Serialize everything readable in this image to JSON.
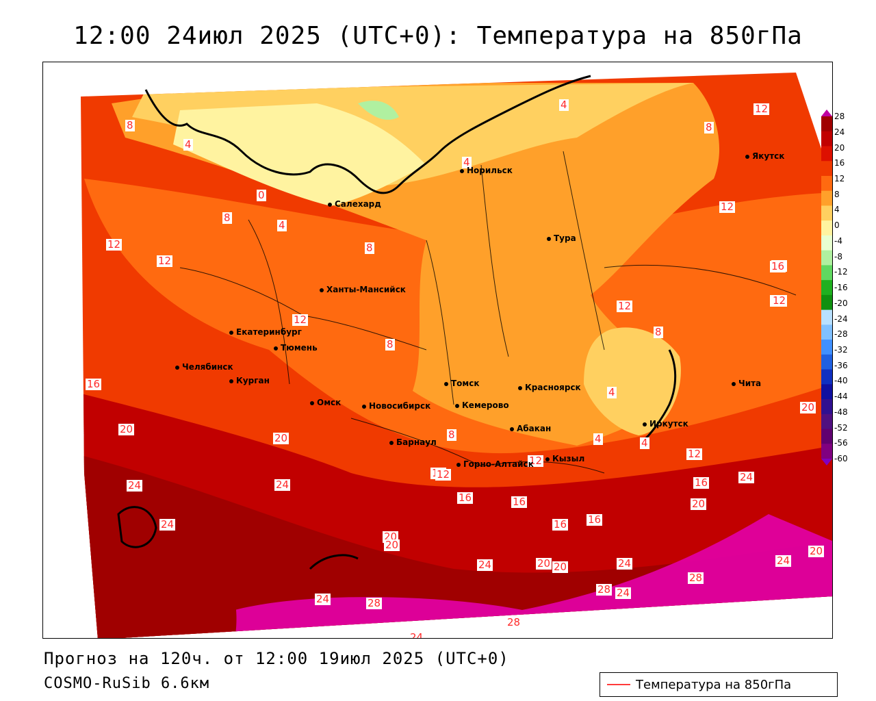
{
  "title": "12:00 24июл 2025 (UTC+0): Температура на 850гПа",
  "forecast_line": "Прогноз на 120ч. от 12:00 19июл 2025 (UTC+0)",
  "model_line": "COSMO-RuSib 6.6км",
  "legend": {
    "label": "Температура на 850гПа",
    "line_color": "#ff3b3b"
  },
  "colorbar": {
    "labels": [
      "28",
      "24",
      "20",
      "16",
      "12",
      "8",
      "4",
      "0",
      "-4",
      "-8",
      "-12",
      "-16",
      "-20",
      "-24",
      "-28",
      "-32",
      "-36",
      "-40",
      "-44",
      "-48",
      "-52",
      "-56",
      "-60"
    ],
    "colors": [
      "#a00000",
      "#c10000",
      "#dd1000",
      "#f03a00",
      "#ff6a10",
      "#ffa02a",
      "#ffd060",
      "#fff3a0",
      "#e8ffd0",
      "#b0f0a0",
      "#60d860",
      "#20b020",
      "#109010",
      "#b8e0ff",
      "#80c0ff",
      "#4090ff",
      "#2060e0",
      "#1030c0",
      "#1010a0",
      "#301090",
      "#501080",
      "#600070",
      "#800080"
    ]
  },
  "cities": [
    {
      "name": "Якутск"
    },
    {
      "name": "Норильск"
    },
    {
      "name": "Салехард"
    },
    {
      "name": "Тура"
    },
    {
      "name": "Ханты-Мансийск"
    },
    {
      "name": "Екатеринбург"
    },
    {
      "name": "Тюмень"
    },
    {
      "name": "Челябинск"
    },
    {
      "name": "Курган"
    },
    {
      "name": "Омск"
    },
    {
      "name": "Новосибирск"
    },
    {
      "name": "Томск"
    },
    {
      "name": "Кемерово"
    },
    {
      "name": "Красноярск"
    },
    {
      "name": "Барнаул"
    },
    {
      "name": "Абакан"
    },
    {
      "name": "Иркутск"
    },
    {
      "name": "Чита"
    },
    {
      "name": "Кызыл"
    },
    {
      "name": "Горно-Алтайск"
    }
  ],
  "isoline_labels": [
    "8",
    "4",
    "0",
    "8",
    "4",
    "12",
    "12",
    "12",
    "8",
    "8",
    "4",
    "4",
    "8",
    "12",
    "12",
    "16",
    "16",
    "20",
    "20",
    "24",
    "24",
    "24",
    "20",
    "24",
    "28",
    "24",
    "20",
    "28",
    "24",
    "16",
    "16",
    "20",
    "16",
    "24",
    "28",
    "20",
    "24",
    "28",
    "24",
    "20",
    "16",
    "16",
    "20",
    "24",
    "16",
    "12",
    "12",
    "8",
    "4",
    "8",
    "12",
    "12",
    "4",
    "4",
    "12",
    "16",
    "12",
    "16",
    "20"
  ]
}
